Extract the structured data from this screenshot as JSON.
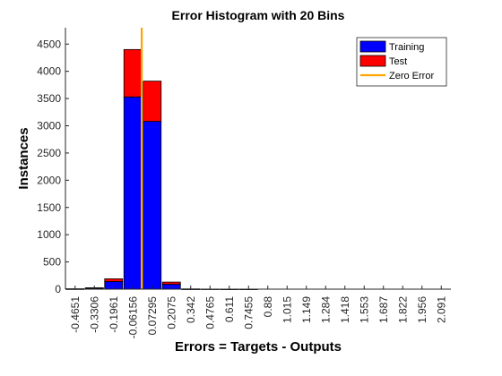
{
  "chart_data": {
    "type": "bar",
    "stacked": true,
    "title": "Error Histogram with 20 Bins",
    "xlabel": "Errors = Targets - Outputs",
    "ylabel": "Instances",
    "ylim": [
      0,
      4800
    ],
    "yticks": [
      0,
      500,
      1000,
      1500,
      2000,
      2500,
      3000,
      3500,
      4000,
      4500
    ],
    "categories": [
      "-0.4651",
      "-0.3306",
      "-0.1961",
      "-0.06156",
      "0.07295",
      "0.2075",
      "0.342",
      "0.4765",
      "0.611",
      "0.7455",
      "0.88",
      "1.015",
      "1.149",
      "1.284",
      "1.418",
      "1.553",
      "1.687",
      "1.822",
      "1.956",
      "2.091"
    ],
    "series": [
      {
        "name": "Training",
        "color": "#0000ff",
        "values": [
          5,
          20,
          140,
          3530,
          3080,
          90,
          3,
          2,
          1,
          1,
          0,
          0,
          0,
          0,
          0,
          0,
          0,
          0,
          0,
          0
        ]
      },
      {
        "name": "Test",
        "color": "#ff0000",
        "values": [
          1,
          5,
          50,
          870,
          740,
          40,
          1,
          0,
          0,
          0,
          0,
          0,
          0,
          0,
          0,
          0,
          0,
          0,
          0,
          0
        ]
      }
    ],
    "zero_line": {
      "name": "Zero Error",
      "color": "#ffa500",
      "x": 0
    },
    "legend_position": "top-right",
    "grid": false
  }
}
